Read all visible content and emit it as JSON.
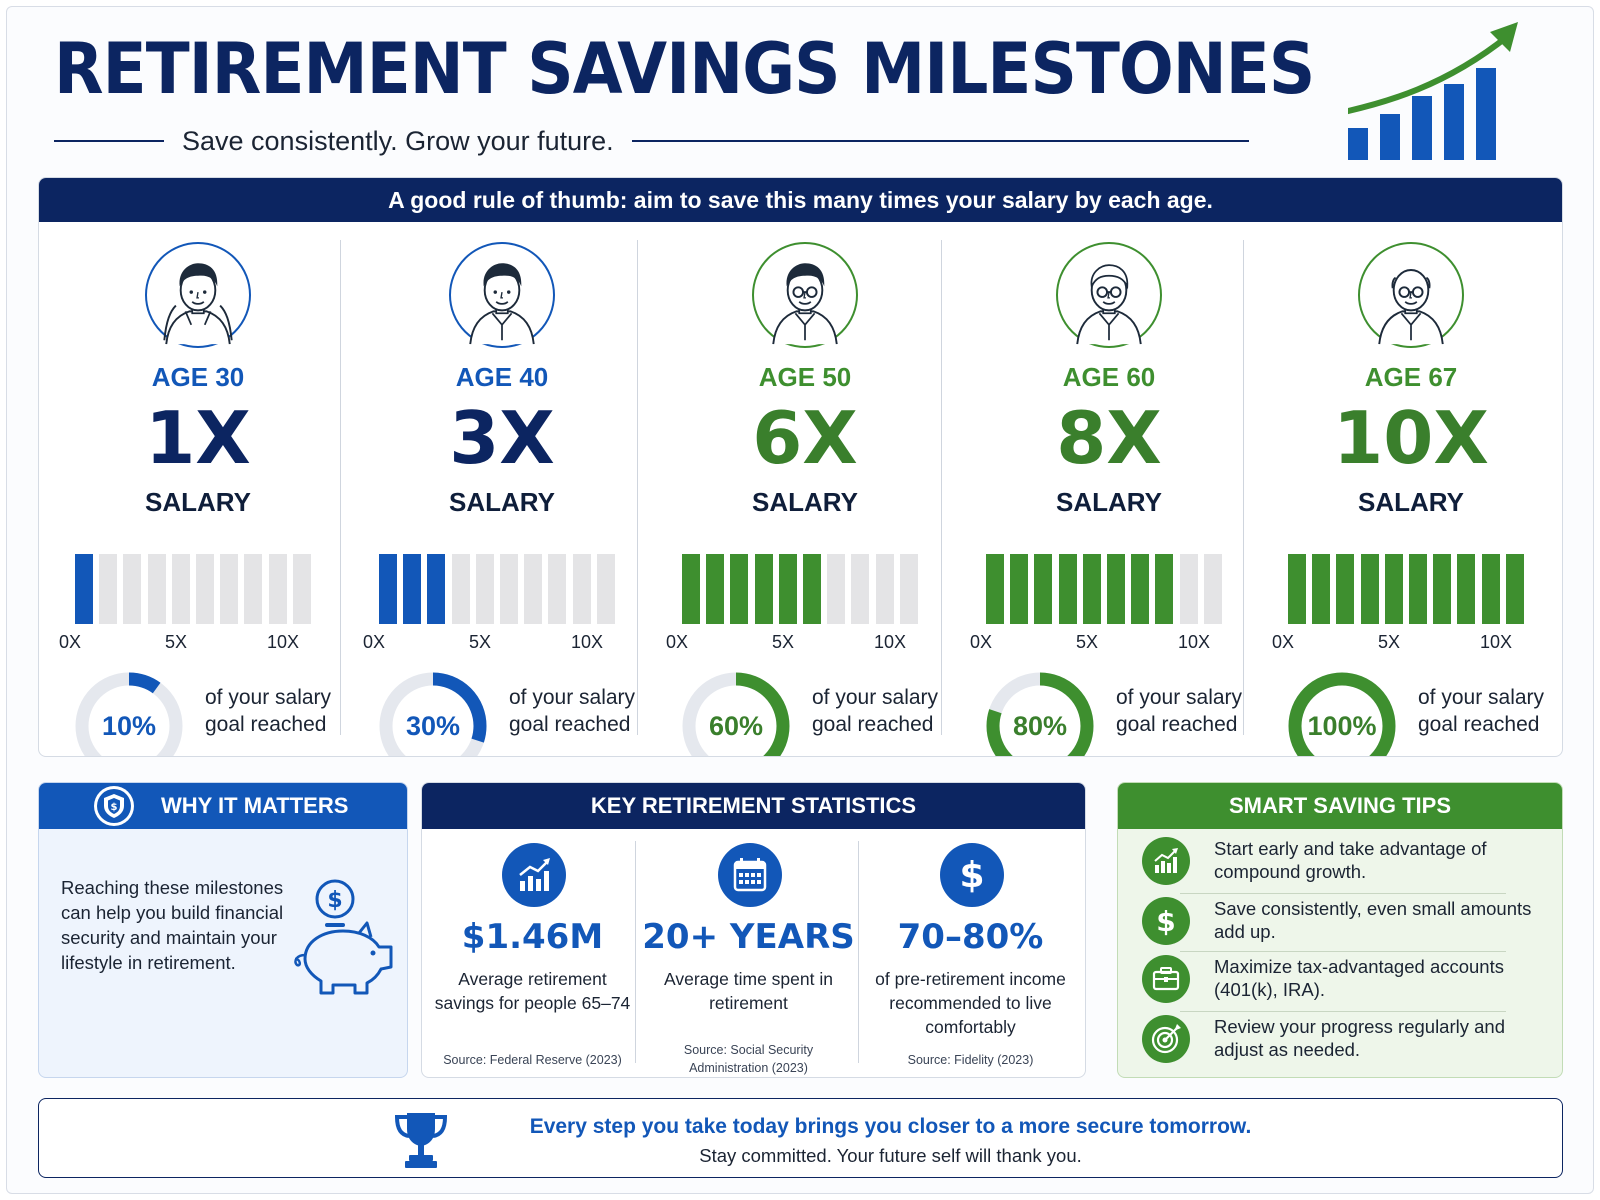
{
  "header": {
    "title": "RETIREMENT SAVINGS MILESTONES",
    "subtitle": "Save consistently. Grow your future."
  },
  "colors": {
    "navy": "#0c2561",
    "blue": "#1257b8",
    "green": "#3e8f2f",
    "grey_track": "#e4e4e6"
  },
  "milestones": {
    "banner": "A good rule of thumb: aim to save this many times your salary by each age.",
    "scale_labels": [
      "0X",
      "5X",
      "10X"
    ],
    "ring_caption": "of your salary goal reached",
    "items": [
      {
        "age": "AGE 30",
        "multiple": "1X",
        "salary": "SALARY",
        "filled_segments": 1,
        "total_segments": 10,
        "percent": "10%",
        "fraction": 0.1,
        "color": "#1257b8",
        "avatar": "young-man-hoodie-icon"
      },
      {
        "age": "AGE 40",
        "multiple": "3X",
        "salary": "SALARY",
        "filled_segments": 3,
        "total_segments": 10,
        "percent": "30%",
        "fraction": 0.3,
        "color": "#1257b8",
        "avatar": "man-collared-shirt-icon"
      },
      {
        "age": "AGE 50",
        "multiple": "6X",
        "salary": "SALARY",
        "filled_segments": 6,
        "total_segments": 10,
        "percent": "60%",
        "fraction": 0.6,
        "color": "#3e8f2f",
        "avatar": "man-glasses-icon"
      },
      {
        "age": "AGE 60",
        "multiple": "8X",
        "salary": "SALARY",
        "filled_segments": 8,
        "total_segments": 10,
        "percent": "80%",
        "fraction": 0.8,
        "color": "#3e8f2f",
        "avatar": "older-man-glasses-icon"
      },
      {
        "age": "AGE 67",
        "multiple": "10X",
        "salary": "SALARY",
        "filled_segments": 10,
        "total_segments": 10,
        "percent": "100%",
        "fraction": 1.0,
        "color": "#3e8f2f",
        "avatar": "senior-man-glasses-icon"
      }
    ]
  },
  "why": {
    "heading": "WHY IT MATTERS",
    "text": "Reaching these milestones can help you build financial security and maintain your lifestyle in retirement.",
    "icons": [
      "shield-icon",
      "piggy-bank-icon"
    ]
  },
  "stats": {
    "heading": "KEY RETIREMENT STATISTICS",
    "items": [
      {
        "icon": "growth-chart-icon",
        "value": "$1.46M",
        "desc": "Average retirement savings for people 65–74",
        "source": "Source: Federal Reserve (2023)"
      },
      {
        "icon": "calendar-icon",
        "value": "20+ YEARS",
        "desc": "Average time spent in retirement",
        "source": "Source: Social Security Administration (2023)"
      },
      {
        "icon": "dollar-icon",
        "value": "70–80%",
        "desc": "of pre-retirement income recommended to live comfortably",
        "source": "Source: Fidelity (2023)"
      }
    ]
  },
  "tips": {
    "heading": "SMART SAVING TIPS",
    "items": [
      {
        "icon": "growth-chart-icon",
        "text": "Start early and take advantage of compound growth."
      },
      {
        "icon": "dollar-icon",
        "text": "Save consistently, even small amounts add up."
      },
      {
        "icon": "briefcase-icon",
        "text": "Maximize tax-advantaged accounts (401(k), IRA)."
      },
      {
        "icon": "target-icon",
        "text": "Review your progress regularly and adjust as needed."
      }
    ]
  },
  "footer": {
    "line1": "Every step you take today brings you closer to a more secure tomorrow.",
    "line2": "Stay committed. Your future self will thank you.",
    "icon": "trophy-icon"
  }
}
